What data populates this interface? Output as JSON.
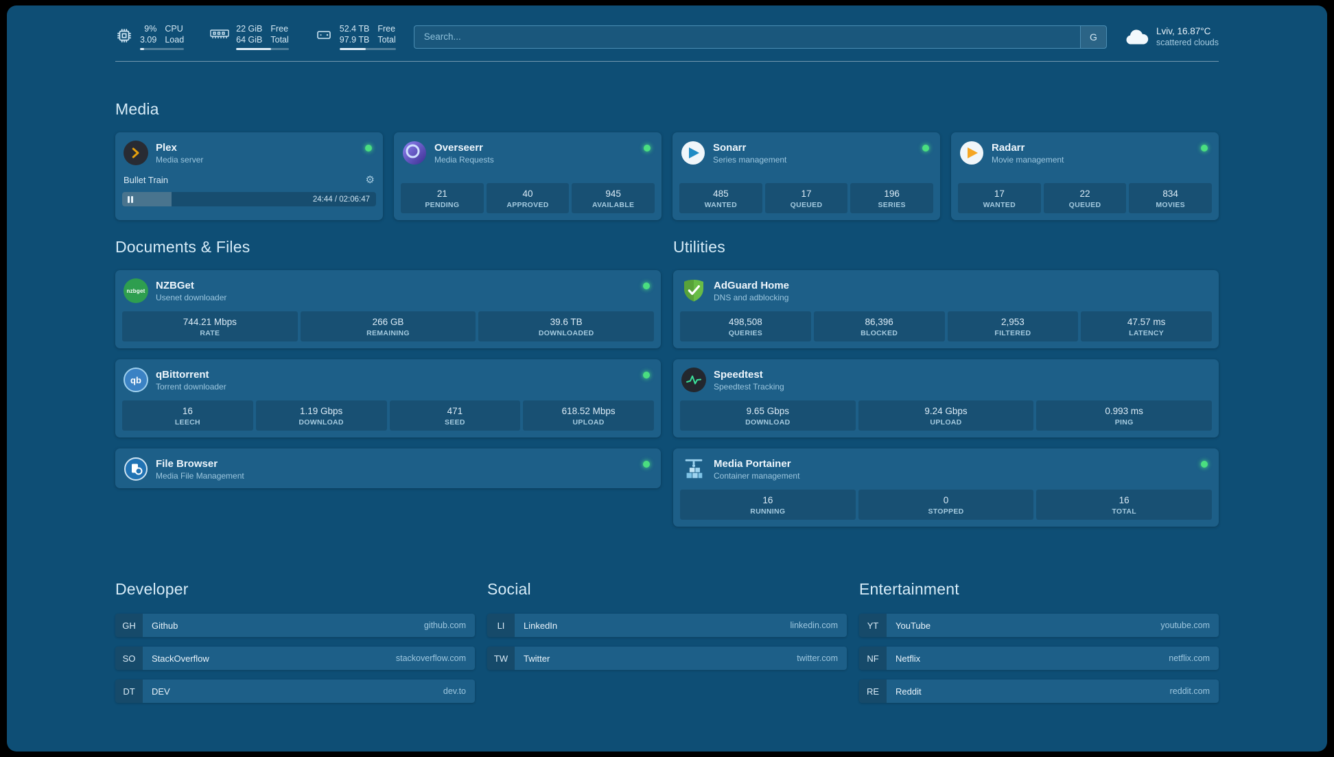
{
  "topbar": {
    "cpu": {
      "value_top": "9%",
      "value_bottom": "3.09",
      "label_top": "CPU",
      "label_bottom": "Load",
      "bar_percent": 9
    },
    "ram": {
      "value_top": "22 GiB",
      "value_bottom": "64 GiB",
      "label_top": "Free",
      "label_bottom": "Total",
      "bar_percent": 66
    },
    "disk": {
      "value_top": "52.4 TB",
      "value_bottom": "97.9 TB",
      "label_top": "Free",
      "label_bottom": "Total",
      "bar_percent": 47
    },
    "search": {
      "placeholder": "Search...",
      "provider_label": "G"
    },
    "weather": {
      "location": "Lviv, 16.87°C",
      "condition": "scattered clouds"
    }
  },
  "media": {
    "title": "Media",
    "plex": {
      "name": "Plex",
      "subtitle": "Media server",
      "now_playing": "Bullet Train",
      "time": "24:44 / 02:06:47",
      "progress_percent": 19.5
    },
    "overseerr": {
      "name": "Overseerr",
      "subtitle": "Media Requests",
      "stats": [
        {
          "value": "21",
          "label": "PENDING"
        },
        {
          "value": "40",
          "label": "APPROVED"
        },
        {
          "value": "945",
          "label": "AVAILABLE"
        }
      ]
    },
    "sonarr": {
      "name": "Sonarr",
      "subtitle": "Series management",
      "stats": [
        {
          "value": "485",
          "label": "WANTED"
        },
        {
          "value": "17",
          "label": "QUEUED"
        },
        {
          "value": "196",
          "label": "SERIES"
        }
      ]
    },
    "radarr": {
      "name": "Radarr",
      "subtitle": "Movie management",
      "stats": [
        {
          "value": "17",
          "label": "WANTED"
        },
        {
          "value": "22",
          "label": "QUEUED"
        },
        {
          "value": "834",
          "label": "MOVIES"
        }
      ]
    }
  },
  "documents": {
    "title": "Documents & Files",
    "nzbget": {
      "name": "NZBGet",
      "subtitle": "Usenet downloader",
      "icon_text": "nzbget",
      "stats": [
        {
          "value": "744.21 Mbps",
          "label": "RATE"
        },
        {
          "value": "266 GB",
          "label": "REMAINING"
        },
        {
          "value": "39.6 TB",
          "label": "DOWNLOADED"
        }
      ]
    },
    "qbittorrent": {
      "name": "qBittorrent",
      "subtitle": "Torrent downloader",
      "icon_text": "qb",
      "stats": [
        {
          "value": "16",
          "label": "LEECH"
        },
        {
          "value": "1.19 Gbps",
          "label": "DOWNLOAD"
        },
        {
          "value": "471",
          "label": "SEED"
        },
        {
          "value": "618.52 Mbps",
          "label": "UPLOAD"
        }
      ]
    },
    "filebrowser": {
      "name": "File Browser",
      "subtitle": "Media File Management"
    }
  },
  "utilities": {
    "title": "Utilities",
    "adguard": {
      "name": "AdGuard Home",
      "subtitle": "DNS and adblocking",
      "stats": [
        {
          "value": "498,508",
          "label": "QUERIES"
        },
        {
          "value": "86,396",
          "label": "BLOCKED"
        },
        {
          "value": "2,953",
          "label": "FILTERED"
        },
        {
          "value": "47.57 ms",
          "label": "LATENCY"
        }
      ]
    },
    "speedtest": {
      "name": "Speedtest",
      "subtitle": "Speedtest Tracking",
      "stats": [
        {
          "value": "9.65 Gbps",
          "label": "DOWNLOAD"
        },
        {
          "value": "9.24 Gbps",
          "label": "UPLOAD"
        },
        {
          "value": "0.993 ms",
          "label": "PING"
        }
      ]
    },
    "portainer": {
      "name": "Media Portainer",
      "subtitle": "Container management",
      "stats": [
        {
          "value": "16",
          "label": "RUNNING"
        },
        {
          "value": "0",
          "label": "STOPPED"
        },
        {
          "value": "16",
          "label": "TOTAL"
        }
      ]
    }
  },
  "bookmarks": {
    "developer": {
      "title": "Developer",
      "items": [
        {
          "abbr": "GH",
          "name": "Github",
          "domain": "github.com"
        },
        {
          "abbr": "SO",
          "name": "StackOverflow",
          "domain": "stackoverflow.com"
        },
        {
          "abbr": "DT",
          "name": "DEV",
          "domain": "dev.to"
        }
      ]
    },
    "social": {
      "title": "Social",
      "items": [
        {
          "abbr": "LI",
          "name": "LinkedIn",
          "domain": "linkedin.com"
        },
        {
          "abbr": "TW",
          "name": "Twitter",
          "domain": "twitter.com"
        }
      ]
    },
    "entertainment": {
      "title": "Entertainment",
      "items": [
        {
          "abbr": "YT",
          "name": "YouTube",
          "domain": "youtube.com"
        },
        {
          "abbr": "NF",
          "name": "Netflix",
          "domain": "netflix.com"
        },
        {
          "abbr": "RE",
          "name": "Reddit",
          "domain": "reddit.com"
        }
      ]
    }
  },
  "colors": {
    "status_online": "#4ade80",
    "background": "#0e4e75",
    "card": "#1d5f88"
  }
}
